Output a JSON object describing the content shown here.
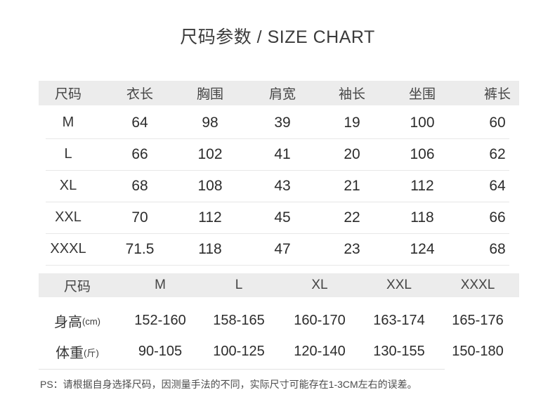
{
  "title": "尺码参数 / SIZE CHART",
  "note": "PS：请根据自身选择尺码，因测量手法的不同，实际尺寸可能存在1-3CM左右的误差。",
  "colors": {
    "header_band": "#ececec",
    "row_divider": "#e7e7e7",
    "title_text": "#3b3b3b",
    "body_text": "#2c2c2c",
    "note_text": "#4c4c4c"
  },
  "chart_data": [
    {
      "type": "table",
      "title": "尺码参数 / SIZE CHART",
      "columns": [
        "尺码",
        "衣长",
        "胸围",
        "肩宽",
        "袖长",
        "坐围",
        "裤长"
      ],
      "rows": [
        [
          "M",
          "64",
          "98",
          "39",
          "19",
          "100",
          "60"
        ],
        [
          "L",
          "66",
          "102",
          "41",
          "20",
          "106",
          "62"
        ],
        [
          "XL",
          "68",
          "108",
          "43",
          "21",
          "112",
          "64"
        ],
        [
          "XXL",
          "70",
          "112",
          "45",
          "22",
          "118",
          "66"
        ],
        [
          "XXXL",
          "71.5",
          "118",
          "47",
          "23",
          "124",
          "68"
        ]
      ]
    },
    {
      "type": "table",
      "columns": [
        "尺码",
        "M",
        "L",
        "XL",
        "XXL",
        "XXXL"
      ],
      "rows": [
        [
          "身高(cm)",
          "152-160",
          "158-165",
          "160-170",
          "163-174",
          "165-176"
        ],
        [
          "体重(斤)",
          "90-105",
          "100-125",
          "120-140",
          "130-155",
          "150-180"
        ]
      ]
    }
  ]
}
